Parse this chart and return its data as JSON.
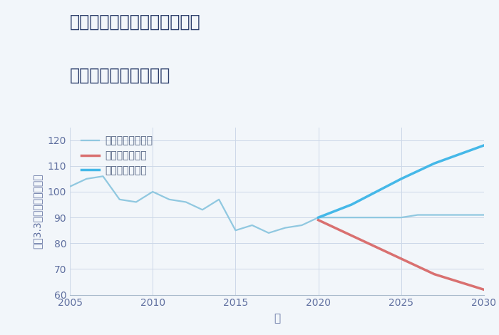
{
  "title_line1": "兵庫県神戸市長田区一番町の",
  "title_line2": "中古戸建ての価格推移",
  "xlabel": "年",
  "ylabel_parts": [
    "坪（3.3㎡）単価（万円）"
  ],
  "background_color": "#f2f6fa",
  "ylim": [
    60,
    125
  ],
  "yticks": [
    60,
    70,
    80,
    90,
    100,
    110,
    120
  ],
  "xlim": [
    2005,
    2030
  ],
  "xticks": [
    2005,
    2010,
    2015,
    2020,
    2025,
    2030
  ],
  "good_scenario": {
    "label": "グッドシナリオ",
    "color": "#45b8e8",
    "linewidth": 2.5,
    "x": [
      2020,
      2022,
      2025,
      2027,
      2030
    ],
    "y": [
      90,
      95,
      105,
      111,
      118
    ]
  },
  "bad_scenario": {
    "label": "バッドシナリオ",
    "color": "#d97070",
    "linewidth": 2.5,
    "x": [
      2020,
      2022,
      2025,
      2027,
      2030
    ],
    "y": [
      89,
      83,
      74,
      68,
      62
    ]
  },
  "normal_scenario": {
    "label": "ノーマルシナリオ",
    "color": "#90c8e0",
    "linewidth": 1.6,
    "x": [
      2005,
      2006,
      2007,
      2008,
      2009,
      2010,
      2011,
      2012,
      2013,
      2014,
      2015,
      2016,
      2017,
      2018,
      2019,
      2020,
      2021,
      2022,
      2023,
      2024,
      2025,
      2026,
      2027,
      2028,
      2029,
      2030
    ],
    "y": [
      102,
      105,
      106,
      97,
      96,
      100,
      97,
      96,
      93,
      97,
      85,
      87,
      84,
      86,
      87,
      90,
      90,
      90,
      90,
      90,
      90,
      91,
      91,
      91,
      91,
      91
    ]
  },
  "grid_color": "#ccd8e8",
  "title_color": "#2c3e6b",
  "axis_label_color": "#6070a0",
  "tick_color": "#6070a0",
  "legend_text_color": "#506080",
  "title_fontsize": 17,
  "axis_fontsize": 10,
  "tick_fontsize": 10,
  "legend_fontsize": 10
}
